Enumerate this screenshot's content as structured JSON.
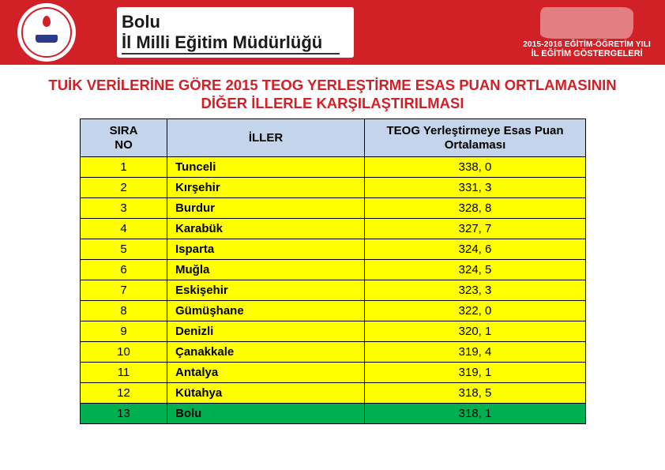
{
  "header": {
    "title_line1": "Bolu",
    "title_line2": "İl Milli Eğitim Müdürlüğü",
    "badge_year": "2015-2016 EĞİTİM-ÖĞRETİM YILI",
    "badge_text": "İL EĞİTİM GÖSTERGELERİ"
  },
  "heading": {
    "line1": "TUİK VERİLERİNE GÖRE 2015 TEOG YERLEŞTİRME ESAS PUAN ORTLAMASININ",
    "line2": "DİĞER İLLERLE KARŞILAŞTIRILMASI"
  },
  "table": {
    "columns": [
      "SIRA NO",
      "İLLER",
      "TEOG Yerleştirmeye Esas Puan Ortalaması"
    ],
    "header_bg": "#c4d4ea",
    "row_bg_default": "#ffff00",
    "row_bg_highlight": "#00b050",
    "border_color": "#000000",
    "rows": [
      {
        "no": "1",
        "il": "Tunceli",
        "score": "338, 0",
        "highlight": false
      },
      {
        "no": "2",
        "il": "Kırşehir",
        "score": "331, 3",
        "highlight": false
      },
      {
        "no": "3",
        "il": "Burdur",
        "score": "328, 8",
        "highlight": false
      },
      {
        "no": "4",
        "il": "Karabük",
        "score": "327, 7",
        "highlight": false
      },
      {
        "no": "5",
        "il": "Isparta",
        "score": "324, 6",
        "highlight": false
      },
      {
        "no": "6",
        "il": "Muğla",
        "score": "324, 5",
        "highlight": false
      },
      {
        "no": "7",
        "il": "Eskişehir",
        "score": "323, 3",
        "highlight": false
      },
      {
        "no": "8",
        "il": "Gümüşhane",
        "score": "322, 0",
        "highlight": false
      },
      {
        "no": "9",
        "il": "Denizli",
        "score": "320, 1",
        "highlight": false
      },
      {
        "no": "10",
        "il": "Çanakkale",
        "score": "319, 4",
        "highlight": false
      },
      {
        "no": "11",
        "il": "Antalya",
        "score": "319, 1",
        "highlight": false
      },
      {
        "no": "12",
        "il": "Kütahya",
        "score": "318, 5",
        "highlight": false
      },
      {
        "no": "13",
        "il": "Bolu",
        "score": "318, 1",
        "highlight": true
      }
    ]
  },
  "colors": {
    "brand_red": "#d22027",
    "white": "#ffffff",
    "black": "#000000"
  }
}
